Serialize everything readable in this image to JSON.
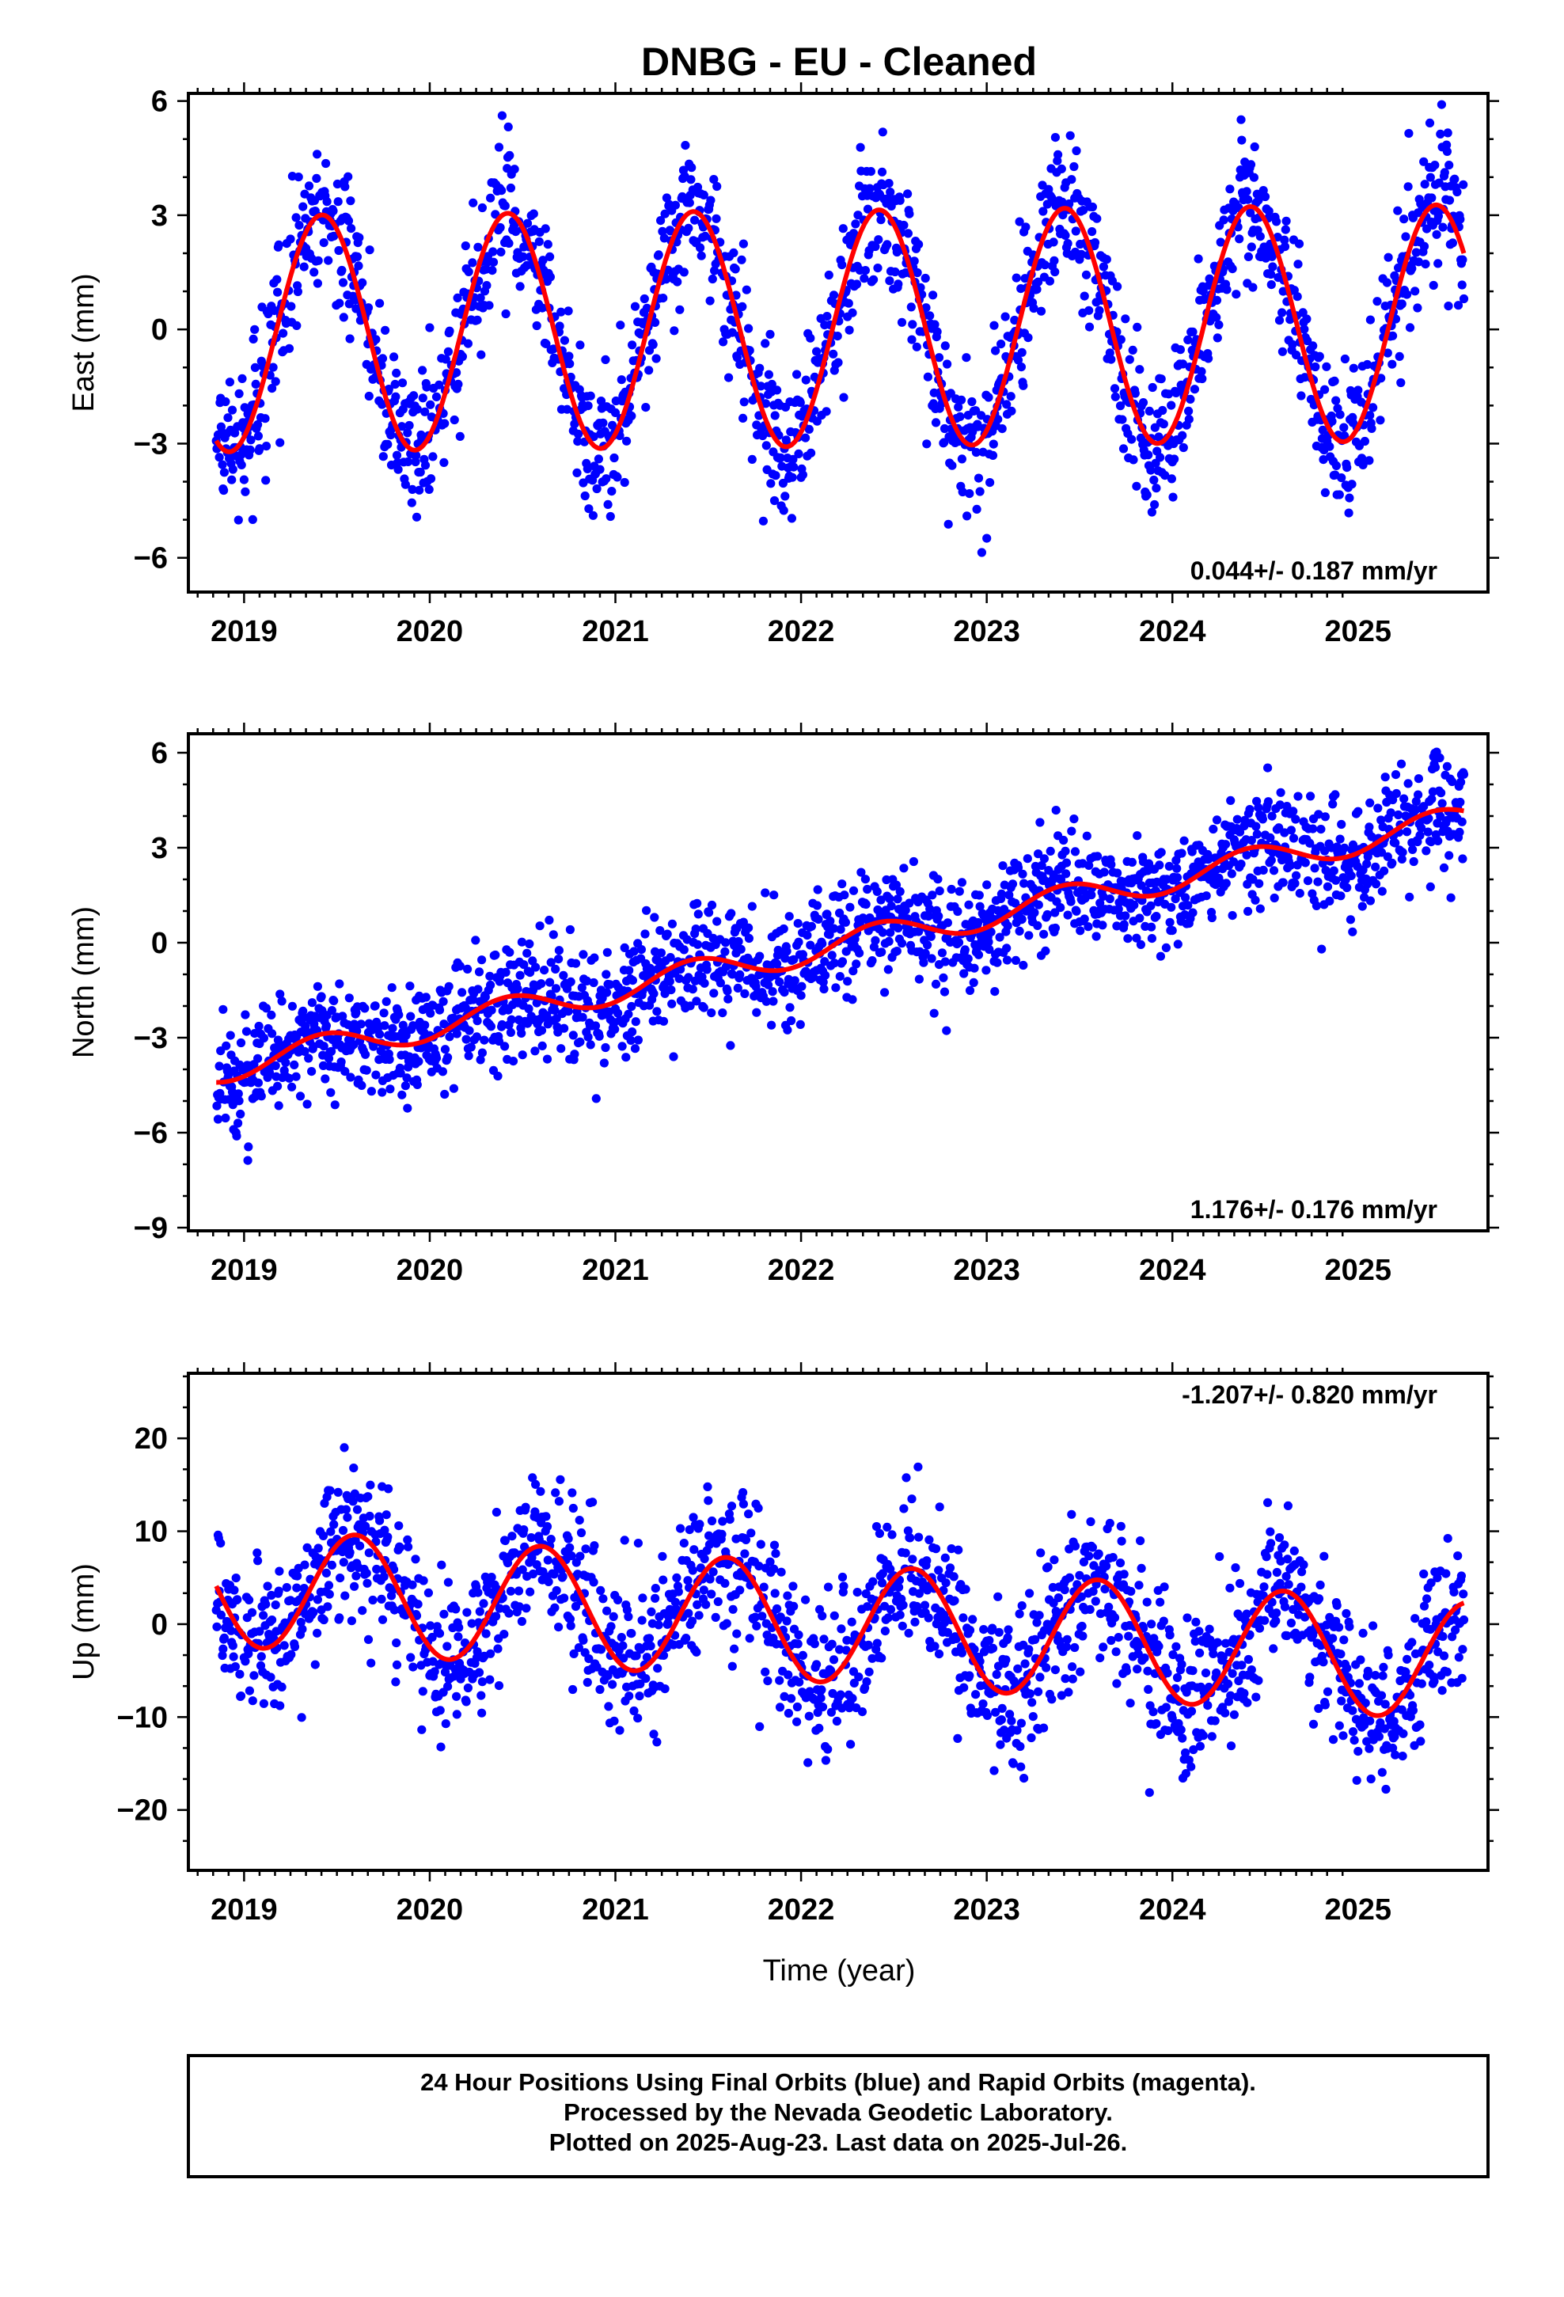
{
  "title": "DNBG  - EU - Cleaned",
  "xlabel": "Time (year)",
  "footer": {
    "lines": [
      "24 Hour Positions Using Final Orbits (blue) and Rapid Orbits (magenta).",
      "Processed by the Nevada Geodetic Laboratory.",
      "Plotted on 2025-Aug-23. Last data on 2025-Jul-26."
    ]
  },
  "colors": {
    "points": "#0000ff",
    "fit": "#ff0000",
    "frame": "#000000"
  },
  "chart_data": [
    {
      "type": "scatter",
      "ylabel": "East (mm)",
      "xlim": [
        2018.7,
        2025.7
      ],
      "ylim": [
        -6.9,
        6.2
      ],
      "x_ticks": [
        2019,
        2020,
        2021,
        2022,
        2023,
        2024,
        2025
      ],
      "y_ticks": [
        -6,
        -3,
        0,
        3,
        6
      ],
      "y_tick_labels": [
        "−6",
        "−3",
        "0",
        "3",
        "6"
      ],
      "rate_label": "0.044+/- 0.187 mm/yr",
      "rate_position": "bottom-right",
      "series": [
        {
          "kind": "scatter",
          "color": "#0000ff",
          "x_range": [
            2018.85,
            2025.57
          ],
          "fit": {
            "offset": 0.02,
            "rate": 0.044,
            "ref_year": 2022,
            "amplitude": 3.1,
            "peak_year_fraction": 0.42
          },
          "scatter_sd": 0.95
        },
        {
          "kind": "line",
          "color": "#ff0000",
          "x_range": [
            2018.85,
            2025.57
          ]
        }
      ]
    },
    {
      "type": "scatter",
      "ylabel": "North (mm)",
      "xlim": [
        2018.7,
        2025.7
      ],
      "ylim": [
        -9.1,
        6.6
      ],
      "x_ticks": [
        2019,
        2020,
        2021,
        2022,
        2023,
        2024,
        2025
      ],
      "y_ticks": [
        -9,
        -6,
        -3,
        0,
        3,
        6
      ],
      "y_tick_labels": [
        "−9",
        "−6",
        "−3",
        "0",
        "3",
        "6"
      ],
      "rate_label": "1.176+/- 0.176 mm/yr",
      "rate_position": "bottom-right",
      "series": [
        {
          "kind": "scatter",
          "color": "#0000ff",
          "x_range": [
            2018.85,
            2025.57
          ],
          "fit": {
            "offset": -0.3,
            "rate": 1.176,
            "ref_year": 2022,
            "amplitude": 0.45,
            "peak_year_fraction": 0.42
          },
          "scatter_sd": 0.9
        },
        {
          "kind": "line",
          "color": "#ff0000",
          "x_range": [
            2018.85,
            2025.57
          ]
        }
      ]
    },
    {
      "type": "scatter",
      "ylabel": "Up (mm)",
      "xlim": [
        2018.7,
        2025.7
      ],
      "ylim": [
        -26.5,
        27
      ],
      "x_ticks": [
        2019,
        2020,
        2021,
        2022,
        2023,
        2024,
        2025
      ],
      "y_ticks": [
        -20,
        -10,
        0,
        10,
        20
      ],
      "y_tick_labels": [
        "−20",
        "−10",
        "0",
        "10",
        "20"
      ],
      "rate_label": "-1.207+/- 0.820 mm/yr",
      "rate_position": "top-right",
      "series": [
        {
          "kind": "scatter",
          "color": "#0000ff",
          "x_range": [
            2018.85,
            2025.57
          ],
          "fit": {
            "offset": 0.3,
            "rate": -1.207,
            "ref_year": 2022,
            "amplitude": 6.4,
            "peak_year_fraction": 0.6
          },
          "scatter_sd": 4.2
        },
        {
          "kind": "line",
          "color": "#ff0000",
          "x_range": [
            2018.85,
            2025.57
          ]
        }
      ]
    }
  ]
}
